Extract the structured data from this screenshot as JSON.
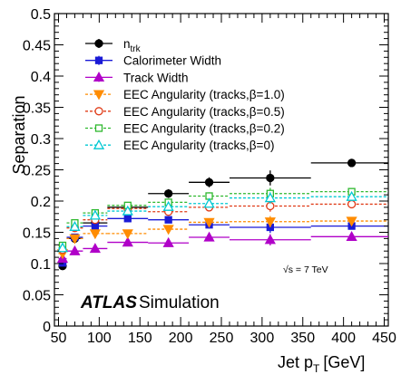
{
  "chart_data": {
    "type": "scatter",
    "xlabel": "Jet p",
    "xlabel_sub": "T",
    "xlabel_unit": "[GeV]",
    "ylabel": "Separation",
    "xlim": [
      45,
      455
    ],
    "ylim": [
      0,
      0.5
    ],
    "x_ticks": [
      "50",
      "100",
      "150",
      "200",
      "250",
      "300",
      "350",
      "400",
      "450"
    ],
    "y_ticks": [
      "0",
      "0.05",
      "0.1",
      "0.15",
      "0.2",
      "0.25",
      "0.3",
      "0.35",
      "0.4",
      "0.45",
      "0.5"
    ],
    "bins": [
      [
        50,
        60
      ],
      [
        60,
        80
      ],
      [
        80,
        110
      ],
      [
        110,
        160
      ],
      [
        160,
        210
      ],
      [
        210,
        260
      ],
      [
        260,
        360
      ],
      [
        360,
        460
      ]
    ],
    "x_centers": [
      55,
      70,
      95,
      135,
      185,
      235,
      310,
      410
    ],
    "legend_position": "top-left",
    "series": [
      {
        "name": "n",
        "name_sub": "trk",
        "color": "#000000",
        "marker": "circle-filled",
        "line": "solid",
        "values": [
          0.096,
          0.14,
          0.165,
          0.19,
          0.212,
          0.23,
          0.237,
          0.261
        ],
        "y_errors": [
          0.005,
          0.005,
          0.005,
          0.006,
          0.007,
          0.008,
          0.012,
          0.006
        ]
      },
      {
        "name": "Calorimeter Width",
        "color": "#1a1ad6",
        "marker": "square-filled",
        "line": "solid",
        "values": [
          0.101,
          0.142,
          0.16,
          0.172,
          0.17,
          0.162,
          0.158,
          0.16
        ],
        "y_errors": [
          0.004,
          0.004,
          0.004,
          0.005,
          0.005,
          0.006,
          0.009,
          0.005
        ]
      },
      {
        "name": "Track Width",
        "color": "#b000c8",
        "marker": "triangle-up-filled",
        "line": "solid",
        "values": [
          0.108,
          0.12,
          0.124,
          0.134,
          0.133,
          0.142,
          0.138,
          0.143
        ],
        "y_errors": [
          0.004,
          0.004,
          0.004,
          0.005,
          0.005,
          0.006,
          0.009,
          0.005
        ]
      },
      {
        "name": "EEC Angularity (tracks,β=1.0)",
        "color": "#ff8c00",
        "marker": "triangle-down-filled",
        "line": "dotted",
        "values": [
          0.116,
          0.14,
          0.148,
          0.148,
          0.155,
          0.166,
          0.167,
          0.168
        ],
        "y_errors": [
          0.004,
          0.004,
          0.004,
          0.005,
          0.005,
          0.006,
          0.009,
          0.005
        ]
      },
      {
        "name": "EEC Angularity (tracks,β=0.5)",
        "color": "#e03c18",
        "marker": "circle-open",
        "line": "dotted",
        "values": [
          0.122,
          0.157,
          0.17,
          0.188,
          0.183,
          0.19,
          0.192,
          0.195
        ],
        "y_errors": [
          0.004,
          0.004,
          0.004,
          0.005,
          0.005,
          0.006,
          0.009,
          0.005
        ]
      },
      {
        "name": "EEC Angularity (tracks,β=0.2)",
        "color": "#2eb82e",
        "marker": "square-open",
        "line": "dotted",
        "values": [
          0.129,
          0.165,
          0.181,
          0.193,
          0.198,
          0.208,
          0.212,
          0.215
        ],
        "y_errors": [
          0.004,
          0.004,
          0.004,
          0.005,
          0.005,
          0.006,
          0.009,
          0.005
        ]
      },
      {
        "name": "EEC Angularity (tracks,β=0)",
        "color": "#00c8d2",
        "marker": "triangle-up-open",
        "line": "dotted",
        "values": [
          0.125,
          0.159,
          0.177,
          0.184,
          0.191,
          0.196,
          0.205,
          0.207
        ],
        "y_errors": [
          0.004,
          0.004,
          0.004,
          0.005,
          0.005,
          0.006,
          0.009,
          0.005
        ]
      }
    ],
    "annotations": {
      "experiment": "ATLAS",
      "label": "Simulation",
      "energy": "√s = 7 TeV"
    }
  }
}
